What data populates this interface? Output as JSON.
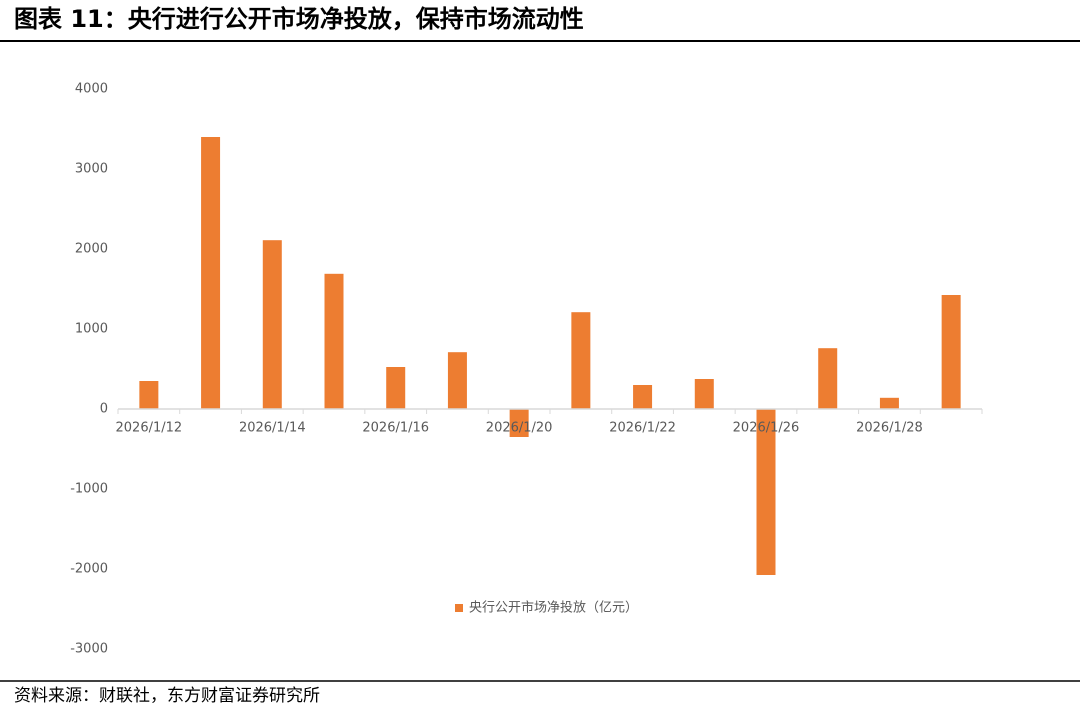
{
  "chart_data": {
    "type": "bar",
    "title": "图表 11：央行进行公开市场净投放，保持市场流动性",
    "source": "资料来源：财联社，东方财富证券研究所",
    "categories": [
      "2026/1/12",
      null,
      "2026/1/14",
      null,
      "2026/1/16",
      null,
      "2026/1/20",
      null,
      "2026/1/22",
      null,
      "2026/1/26",
      null,
      "2026/1/28",
      null
    ],
    "series": [
      {
        "name": "央行公开市场净投放（亿元）",
        "color": "#ed7d31",
        "values": [
          350,
          3400,
          2110,
          1690,
          525,
          710,
          -350,
          1210,
          300,
          375,
          -2075,
          760,
          140,
          1425
        ]
      }
    ],
    "ylim": [
      -3000,
      4000
    ],
    "yticks": [
      -3000,
      -2000,
      -1000,
      0,
      1000,
      2000,
      3000,
      4000
    ],
    "grid": false,
    "legend": "bottom"
  }
}
